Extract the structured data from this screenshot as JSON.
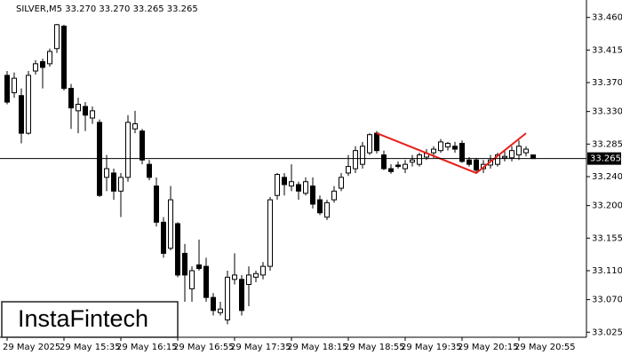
{
  "chart_data": {
    "type": "candlestick",
    "header": "SILVER,M5  33.270 33.270 33.265 33.265",
    "watermark": "InstaFintech",
    "categories": [
      "29 May 2025",
      null,
      null,
      null,
      null,
      null,
      null,
      null,
      "29 May 15:35",
      null,
      null,
      null,
      null,
      null,
      null,
      null,
      "29 May 16:15",
      null,
      null,
      null,
      null,
      null,
      null,
      null,
      "29 May 16:55",
      null,
      null,
      null,
      null,
      null,
      null,
      null,
      "29 May 17:35",
      null,
      null,
      null,
      null,
      null,
      null,
      null,
      "29 May 18:15",
      null,
      null,
      null,
      null,
      null,
      null,
      null,
      "29 May 18:55",
      null,
      null,
      null,
      null,
      null,
      null,
      null,
      "29 May 19:35",
      null,
      null,
      null,
      null,
      null,
      null,
      null,
      "29 May 20:15",
      null,
      null,
      null,
      null,
      null,
      null,
      null,
      "29 May 20:55",
      null,
      null
    ],
    "open": [
      33.38,
      33.356,
      33.352,
      33.3,
      33.386,
      33.399,
      33.396,
      33.417,
      33.448,
      33.362,
      33.331,
      33.337,
      33.321,
      33.315,
      33.239,
      33.245,
      33.22,
      33.239,
      33.306,
      33.303,
      33.257,
      33.227,
      33.177,
      33.141,
      33.175,
      33.134,
      33.085,
      33.118,
      33.116,
      33.073,
      33.052,
      33.042,
      33.098,
      33.098,
      33.091,
      33.101,
      33.104,
      33.116,
      33.214,
      33.239,
      33.227,
      33.229,
      33.217,
      33.227,
      33.208,
      33.184,
      33.208,
      33.224,
      33.245,
      33.251,
      33.257,
      33.273,
      33.3,
      33.27,
      33.251,
      33.256,
      33.251,
      33.26,
      33.257,
      33.267,
      33.273,
      33.276,
      33.281,
      33.282,
      33.286,
      33.263,
      33.263,
      33.251,
      33.256,
      33.257,
      33.266,
      33.266,
      33.27,
      33.273,
      33.27
    ],
    "high": [
      33.386,
      33.384,
      33.362,
      33.386,
      33.401,
      33.403,
      33.417,
      33.451,
      33.45,
      33.368,
      33.349,
      33.343,
      33.337,
      33.319,
      33.27,
      33.251,
      33.245,
      33.325,
      33.331,
      33.306,
      33.263,
      33.239,
      33.184,
      33.227,
      33.177,
      33.147,
      33.116,
      33.153,
      33.128,
      33.079,
      33.067,
      33.11,
      33.134,
      33.104,
      33.116,
      33.11,
      33.122,
      33.212,
      33.245,
      33.245,
      33.257,
      33.233,
      33.239,
      33.239,
      33.214,
      33.208,
      33.227,
      33.245,
      33.27,
      33.282,
      33.288,
      33.3,
      33.303,
      33.276,
      33.257,
      33.261,
      33.263,
      33.27,
      33.273,
      33.278,
      33.282,
      33.292,
      33.288,
      33.288,
      33.29,
      33.267,
      33.266,
      33.263,
      33.27,
      33.273,
      33.276,
      33.282,
      33.29,
      33.282,
      33.27
    ],
    "low": [
      33.34,
      33.349,
      33.286,
      33.298,
      33.381,
      33.362,
      33.392,
      33.411,
      33.359,
      33.306,
      33.3,
      33.303,
      33.313,
      33.212,
      33.22,
      33.208,
      33.184,
      33.233,
      33.3,
      33.257,
      33.235,
      33.171,
      33.128,
      33.138,
      33.101,
      33.067,
      33.067,
      33.11,
      33.067,
      33.048,
      33.048,
      33.036,
      33.091,
      33.048,
      33.061,
      33.094,
      33.098,
      33.11,
      33.208,
      33.214,
      33.22,
      33.208,
      33.214,
      33.196,
      33.187,
      33.18,
      33.204,
      33.22,
      33.241,
      33.245,
      33.251,
      33.27,
      33.272,
      33.249,
      33.244,
      33.251,
      33.245,
      33.254,
      33.254,
      33.263,
      33.266,
      33.273,
      33.276,
      33.273,
      33.259,
      33.254,
      33.246,
      33.245,
      33.251,
      33.254,
      33.261,
      33.261,
      33.263,
      33.268,
      33.265
    ],
    "close": [
      33.343,
      33.376,
      33.3,
      33.38,
      33.396,
      33.391,
      33.413,
      33.45,
      33.362,
      33.335,
      33.34,
      33.325,
      33.331,
      33.214,
      33.251,
      33.22,
      33.239,
      33.315,
      33.313,
      33.263,
      33.239,
      33.177,
      33.134,
      33.208,
      33.104,
      33.104,
      33.11,
      33.113,
      33.073,
      33.055,
      33.057,
      33.101,
      33.104,
      33.055,
      33.104,
      33.106,
      33.116,
      33.208,
      33.243,
      33.229,
      33.233,
      33.22,
      33.233,
      33.202,
      33.19,
      33.204,
      33.22,
      33.239,
      33.254,
      33.276,
      33.282,
      33.298,
      33.276,
      33.251,
      33.247,
      33.254,
      33.257,
      33.263,
      33.27,
      33.272,
      33.278,
      33.288,
      33.286,
      33.278,
      33.261,
      33.257,
      33.249,
      33.257,
      33.263,
      33.27,
      33.268,
      33.276,
      33.282,
      33.278,
      33.265
    ],
    "up_color": "#ffffff",
    "down_color": "#000000",
    "current_price": 33.265,
    "pattern": {
      "color": "#e8201c",
      "x": [
        52,
        66,
        73
      ],
      "values": [
        33.3,
        33.245,
        33.3
      ]
    },
    "ylim": [
      33.018,
      33.478
    ],
    "yticks": [
      {
        "value": 33.46,
        "label": "33.460"
      },
      33.415,
      {
        "value": 33.37,
        "label": "33.370"
      },
      {
        "value": 33.33,
        "label": "33.330"
      },
      33.285,
      {
        "value": 33.24,
        "label": "33.240"
      },
      {
        "value": 33.2,
        "label": "33.200"
      },
      33.155,
      {
        "value": 33.11,
        "label": "33.110"
      },
      {
        "value": 33.07,
        "label": "33.070"
      },
      33.025
    ]
  }
}
